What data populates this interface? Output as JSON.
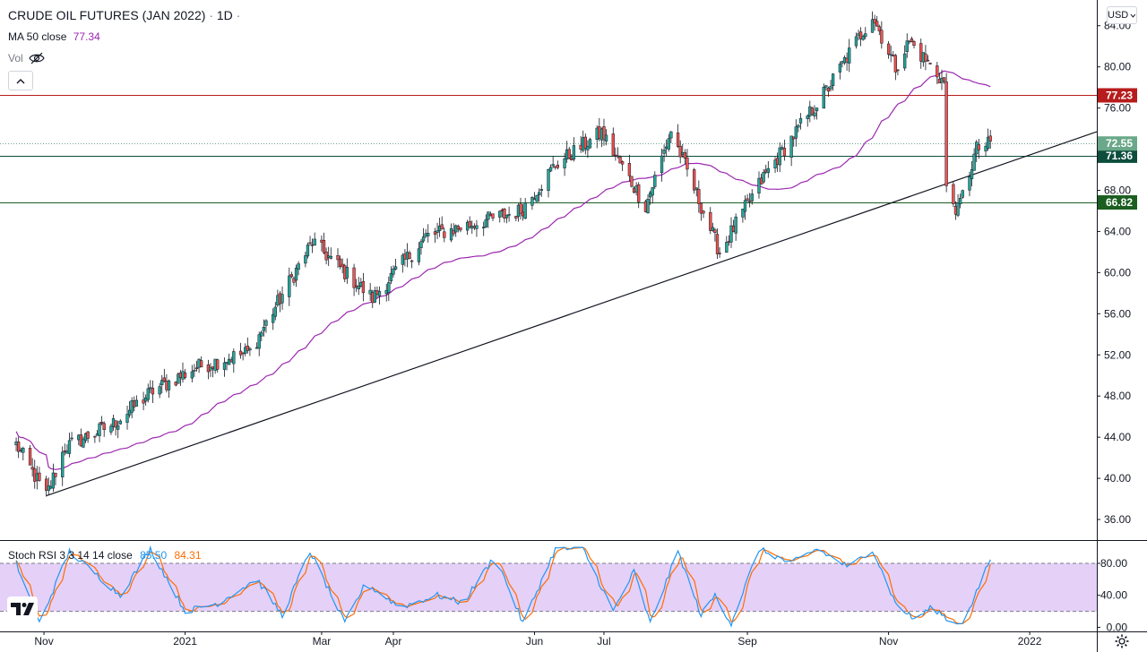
{
  "header": {
    "symbol_title": "CRUDE OIL FUTURES (JAN 2022)",
    "separator": "·",
    "interval": "1D",
    "ma_label": "MA 50 close",
    "ma_value": "77.34",
    "vol_label": "Vol",
    "currency": "USD"
  },
  "stoch_header": {
    "label": "Stoch RSI 3 3 14 14 close",
    "k_value": "85.50",
    "d_value": "84.31"
  },
  "colors": {
    "up": "#26a69a",
    "down": "#ef5350",
    "ma": "#9c27b0",
    "stoch_k": "#2196f3",
    "stoch_d": "#ff6d00",
    "stoch_band": "#e1c8f7",
    "red_level": "#b71c1c",
    "dark_green_level": "#0d4d3b",
    "green_level": "#1b5e20",
    "last_price": "#6aa889"
  },
  "chart_data": [
    {
      "type": "candlestick",
      "title": "CRUDE OIL FUTURES (JAN 2022)",
      "interval": "1D",
      "ylim": [
        34,
        86.5
      ],
      "y_ticks": [
        "84.00",
        "80.00",
        "76.00",
        "72.00",
        "68.00",
        "64.00",
        "60.00",
        "56.00",
        "52.00",
        "48.00",
        "44.00",
        "40.00",
        "36.00"
      ],
      "x_tick_labels": [
        "Nov",
        "2021",
        "Mar",
        "Apr",
        "Jun",
        "Jul",
        "Sep",
        "Nov",
        "2022"
      ],
      "price_anchors": [
        {
          "date": "2020-10-20",
          "price": 43.3
        },
        {
          "date": "2020-11-02",
          "price": 38.3
        },
        {
          "date": "2020-11-10",
          "price": 43.0
        },
        {
          "date": "2020-12-01",
          "price": 45.3
        },
        {
          "date": "2020-12-18",
          "price": 48.5
        },
        {
          "date": "2021-01-06",
          "price": 50.8
        },
        {
          "date": "2021-01-29",
          "price": 52.3
        },
        {
          "date": "2021-02-25",
          "price": 63.0
        },
        {
          "date": "2021-03-23",
          "price": 57.5
        },
        {
          "date": "2021-04-15",
          "price": 63.5
        },
        {
          "date": "2021-05-26",
          "price": 66.0
        },
        {
          "date": "2021-06-10",
          "price": 70.5
        },
        {
          "date": "2021-06-30",
          "price": 73.6
        },
        {
          "date": "2021-07-19",
          "price": 66.5
        },
        {
          "date": "2021-07-30",
          "price": 73.8
        },
        {
          "date": "2021-08-20",
          "price": 62.0
        },
        {
          "date": "2021-09-08",
          "price": 69.3
        },
        {
          "date": "2021-10-06",
          "price": 78.0
        },
        {
          "date": "2021-10-25",
          "price": 85.0
        },
        {
          "date": "2021-11-04",
          "price": 80.0
        },
        {
          "date": "2021-11-10",
          "price": 82.5
        },
        {
          "date": "2021-11-25",
          "price": 78.5
        },
        {
          "date": "2021-11-26",
          "price": 68.0
        },
        {
          "date": "2021-12-01",
          "price": 66.0
        },
        {
          "date": "2021-12-09",
          "price": 72.0
        },
        {
          "date": "2021-12-15",
          "price": 72.5
        }
      ],
      "series": [
        {
          "name": "MA 50 close",
          "last": 77.34
        },
        {
          "name": "Trendline",
          "points": [
            {
              "date": "2020-11-02",
              "price": 38.3
            },
            {
              "date": "2022-01-30",
              "price": 73.7
            }
          ]
        }
      ],
      "horizontal_levels": [
        {
          "value": 77.23,
          "label": "77.23",
          "color_key": "red_level"
        },
        {
          "value": 71.36,
          "label": "71.36",
          "color_key": "dark_green_level"
        },
        {
          "value": 66.82,
          "label": "66.82",
          "color_key": "green_level"
        }
      ],
      "last_price": {
        "value": 72.55,
        "label": "72.55"
      }
    },
    {
      "type": "line",
      "title": "Stoch RSI 3 3 14 14 close",
      "ylim": [
        -4,
        108
      ],
      "y_ticks": [
        "80.00",
        "40.00",
        "0.00"
      ],
      "band": [
        20,
        80
      ],
      "k_anchors": [
        {
          "date": "2020-10-20",
          "v": 80
        },
        {
          "date": "2020-10-30",
          "v": 5
        },
        {
          "date": "2020-11-12",
          "v": 95
        },
        {
          "date": "2020-12-04",
          "v": 40
        },
        {
          "date": "2020-12-17",
          "v": 98
        },
        {
          "date": "2021-01-01",
          "v": 20
        },
        {
          "date": "2021-01-15",
          "v": 30
        },
        {
          "date": "2021-02-01",
          "v": 60
        },
        {
          "date": "2021-02-12",
          "v": 15
        },
        {
          "date": "2021-02-24",
          "v": 95
        },
        {
          "date": "2021-03-11",
          "v": 5
        },
        {
          "date": "2021-03-20",
          "v": 55
        },
        {
          "date": "2021-04-04",
          "v": 25
        },
        {
          "date": "2021-04-20",
          "v": 40
        },
        {
          "date": "2021-05-01",
          "v": 30
        },
        {
          "date": "2021-05-15",
          "v": 90
        },
        {
          "date": "2021-05-27",
          "v": 5
        },
        {
          "date": "2021-06-10",
          "v": 98
        },
        {
          "date": "2021-06-22",
          "v": 98
        },
        {
          "date": "2021-07-05",
          "v": 20
        },
        {
          "date": "2021-07-14",
          "v": 70
        },
        {
          "date": "2021-07-21",
          "v": 5
        },
        {
          "date": "2021-08-02",
          "v": 95
        },
        {
          "date": "2021-08-12",
          "v": 15
        },
        {
          "date": "2021-08-18",
          "v": 40
        },
        {
          "date": "2021-08-25",
          "v": 5
        },
        {
          "date": "2021-09-06",
          "v": 98
        },
        {
          "date": "2021-09-20",
          "v": 80
        },
        {
          "date": "2021-10-01",
          "v": 98
        },
        {
          "date": "2021-10-15",
          "v": 75
        },
        {
          "date": "2021-10-25",
          "v": 98
        },
        {
          "date": "2021-11-04",
          "v": 30
        },
        {
          "date": "2021-11-12",
          "v": 10
        },
        {
          "date": "2021-11-20",
          "v": 25
        },
        {
          "date": "2021-11-29",
          "v": 5
        },
        {
          "date": "2021-12-04",
          "v": 8
        },
        {
          "date": "2021-12-15",
          "v": 85.5
        }
      ],
      "series": [
        {
          "name": "%K",
          "last": 85.5
        },
        {
          "name": "%D",
          "last": 84.31
        }
      ]
    }
  ]
}
